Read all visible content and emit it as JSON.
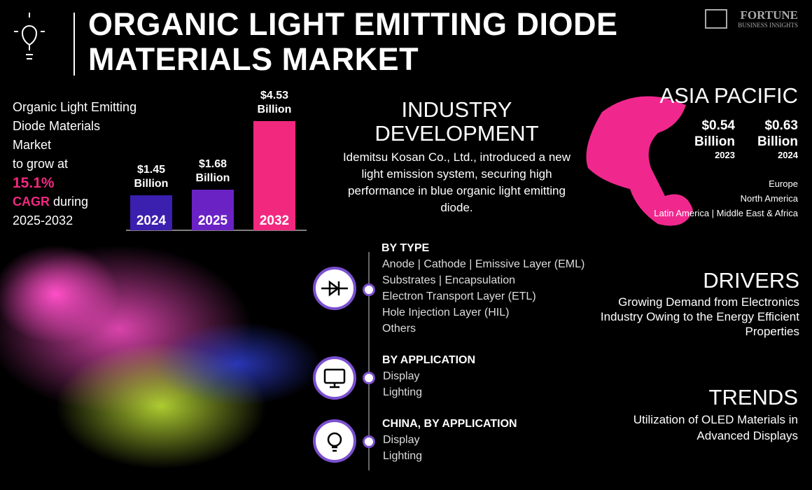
{
  "header": {
    "title": "ORGANIC LIGHT EMITTING DIODE MATERIALS MARKET",
    "brand": "FORTUNE",
    "brand_sub": "BUSINESS INSIGHTS"
  },
  "summary": {
    "lines": [
      "Organic Light Emitting",
      "Diode Materials",
      "Market",
      "to grow at"
    ],
    "cagr": "15.1%",
    "cagr_label": "CAGR",
    "during": "during",
    "period": "2025-2032"
  },
  "chart_data": {
    "type": "bar",
    "categories": [
      "2024",
      "2025",
      "2032"
    ],
    "values": [
      1.45,
      1.68,
      4.53
    ],
    "value_labels": [
      "$1.45 Billion",
      "$1.68 Billion",
      "$4.53 Billion"
    ],
    "colors": [
      "#3b1fae",
      "#6b22c4",
      "#f2287f"
    ]
  },
  "industry": {
    "title": "INDUSTRY DEVELOPMENT",
    "text": "Idemitsu Kosan Co., Ltd., introduced a new light emission system, securing high performance in blue organic light emitting diode."
  },
  "region": {
    "title": "ASIA PACIFIC",
    "values": [
      {
        "value": "$0.54 Billion",
        "year": "2023"
      },
      {
        "value": "$0.63 Billion",
        "year": "2024"
      }
    ],
    "others": [
      "Europe",
      "North America",
      "Latin America | Middle East & Africa"
    ]
  },
  "segments": [
    {
      "title": "BY TYPE",
      "items": [
        "Anode | Cathode | Emissive Layer (EML)",
        "Substrates | Encapsulation",
        "Electron Transport Layer (ETL)",
        "Hole Injection Layer (HIL)",
        "Others"
      ]
    },
    {
      "title": "BY APPLICATION",
      "items": [
        "Display",
        "Lighting"
      ]
    },
    {
      "title": "CHINA, BY APPLICATION",
      "items": [
        "Display",
        "Lighting"
      ]
    }
  ],
  "drivers": {
    "title": "DRIVERS",
    "text": "Growing Demand from Electronics Industry Owing to the Energy Efficient Properties"
  },
  "trends": {
    "title": "TRENDS",
    "text": "Utilization of OLED Materials in Advanced Displays"
  }
}
